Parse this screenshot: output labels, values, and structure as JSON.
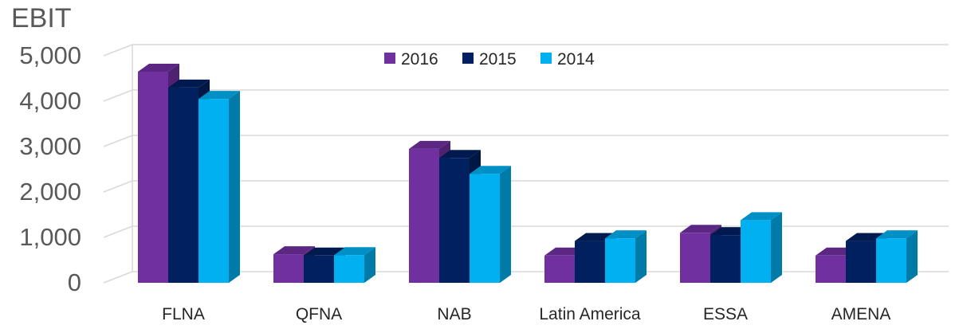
{
  "chart_data": {
    "type": "bar",
    "ylabel": "EBIT",
    "categories": [
      "FLNA",
      "QFNA",
      "NAB",
      "Latin America",
      "ESSA",
      "AMENA"
    ],
    "series": [
      {
        "name": "2016",
        "color": "#7030a0",
        "values": [
          4650,
          630,
          2950,
          600,
          1100,
          600
        ]
      },
      {
        "name": "2015",
        "color": "#002060",
        "values": [
          4300,
          600,
          2750,
          920,
          1050,
          920
        ]
      },
      {
        "name": "2014",
        "color": "#00b0f0",
        "values": [
          4050,
          610,
          2400,
          980,
          1380,
          980
        ]
      }
    ],
    "yticks": [
      "0",
      "1,000",
      "2,000",
      "3,000",
      "4,000",
      "5,000"
    ],
    "ytick_values": [
      0,
      1000,
      2000,
      3000,
      4000,
      5000
    ],
    "ylim": [
      0,
      5000
    ],
    "grid": true,
    "legend_position": "top",
    "style": "3d-clustered-column"
  }
}
